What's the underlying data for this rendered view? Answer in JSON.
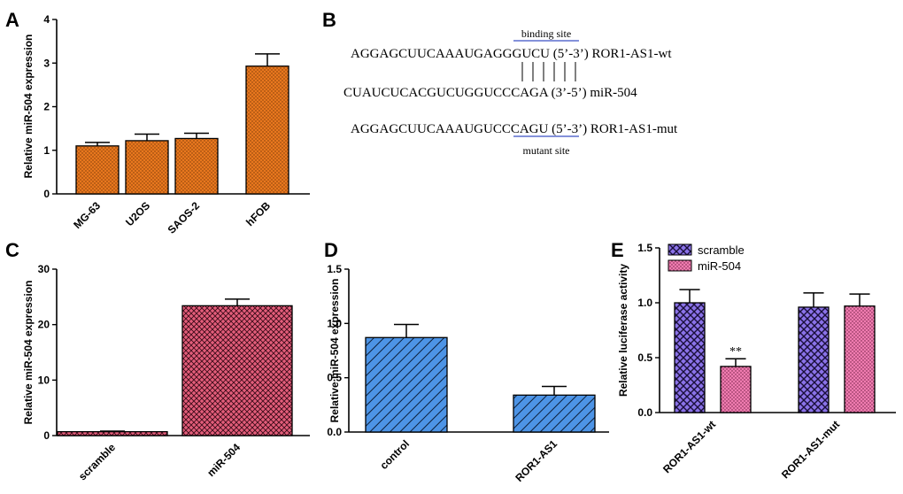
{
  "panel_letters": {
    "A": "A",
    "B": "B",
    "C": "C",
    "D": "D",
    "E": "E"
  },
  "panel_b": {
    "binding_site_label": "binding site",
    "mutant_site_label": "mutant site",
    "wt_prefix": "AGGAGCUUCAAAUG",
    "wt_site": "AGGGUC",
    "wt_suffix": "U (5’-3’) ROR1-AS1-wt",
    "mir_line": "CUAUCUCACGUCUGGUCCCAGA (3’-5’) miR-504",
    "mut_prefix": "AGGAGCUUCAAAUG",
    "mut_site": "UCCCAG",
    "mut_suffix": "U (5’-3’) ROR1-AS1-mut",
    "underline_color": "#3b4fc4"
  },
  "chart_data": [
    {
      "id": "A",
      "type": "bar",
      "title": "",
      "ylabel": "Relative miR-504 expression",
      "xlabel": "",
      "categories": [
        "MG-63",
        "U2OS",
        "SAOS-2",
        "hFOB"
      ],
      "values": [
        1.1,
        1.22,
        1.27,
        2.93
      ],
      "errors": [
        0.08,
        0.15,
        0.12,
        0.28
      ],
      "ylim": [
        0,
        4
      ],
      "yticks": [
        "0",
        "1",
        "2",
        "3",
        "4"
      ],
      "color": "#e8771e"
    },
    {
      "id": "C",
      "type": "bar",
      "title": "",
      "ylabel": "Relative miR-504 expression",
      "xlabel": "",
      "categories": [
        "scramble",
        "miR-504"
      ],
      "values": [
        0.7,
        23.4
      ],
      "errors": [
        0.1,
        1.2
      ],
      "ylim": [
        0,
        30
      ],
      "yticks": [
        "0",
        "10",
        "20",
        "30"
      ],
      "color": "#e35d7a"
    },
    {
      "id": "D",
      "type": "bar",
      "title": "",
      "ylabel": "Relative miR-504 expression",
      "xlabel": "",
      "categories": [
        "control",
        "ROR1-AS1"
      ],
      "values": [
        0.87,
        0.34
      ],
      "errors": [
        0.12,
        0.08
      ],
      "ylim": [
        0,
        1.5
      ],
      "yticks": [
        "0.0",
        "0.5",
        "1.0",
        "1.5"
      ],
      "color": "#4d94e6"
    },
    {
      "id": "E",
      "type": "bar",
      "title": "",
      "ylabel": "Relative luciferase activity",
      "xlabel": "",
      "categories": [
        "ROR1-AS1-wt",
        "ROR1-AS1-mut"
      ],
      "series": [
        {
          "name": "scramble",
          "values": [
            1.0,
            0.96
          ],
          "errors": [
            0.12,
            0.13
          ],
          "color": "#8a72e8"
        },
        {
          "name": "miR-504",
          "values": [
            0.42,
            0.97
          ],
          "errors": [
            0.07,
            0.11
          ],
          "color": "#f07cb0"
        }
      ],
      "annotations": [
        {
          "category": "ROR1-AS1-wt",
          "series": "miR-504",
          "text": "**"
        }
      ],
      "ylim": [
        0,
        1.5
      ],
      "yticks": [
        "0.0",
        "0.5",
        "1.0",
        "1.5"
      ]
    }
  ]
}
